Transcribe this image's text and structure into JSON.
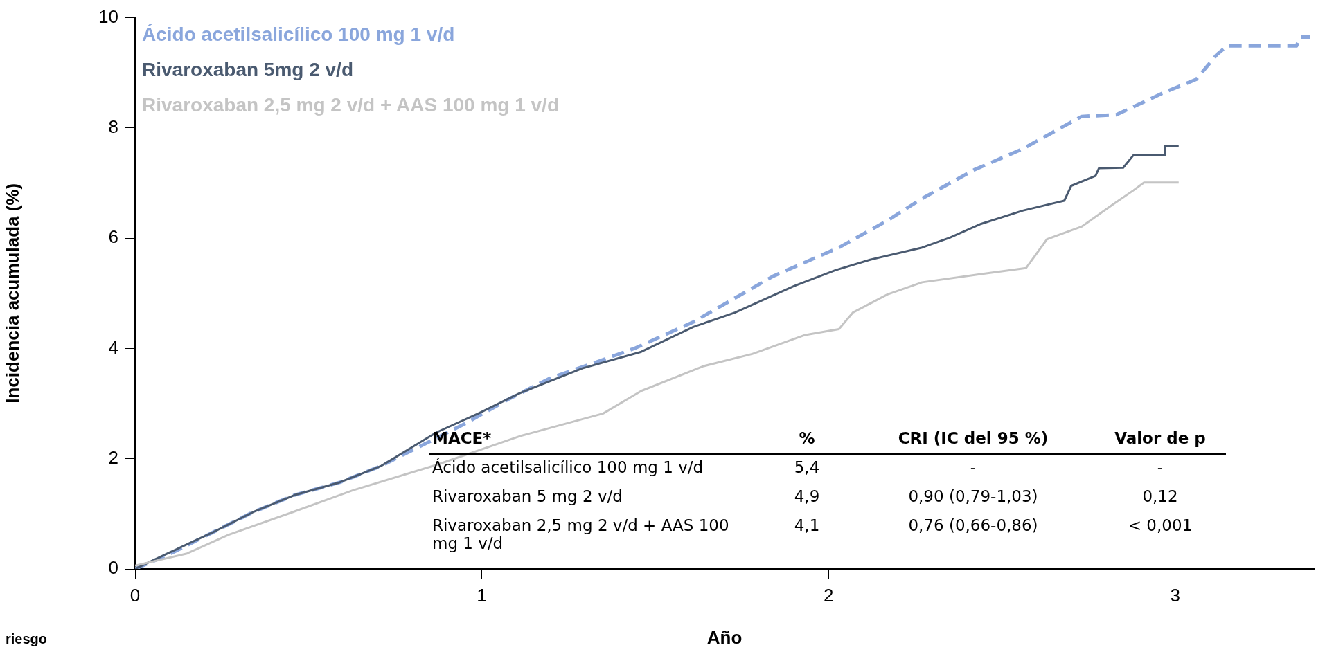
{
  "chart_data": {
    "type": "line",
    "xlabel": "Año",
    "ylabel": "Incidencia acumulada (%)",
    "xlim": [
      0,
      3.4
    ],
    "xticks": [
      0,
      1,
      2,
      3
    ],
    "ylim": [
      0,
      10
    ],
    "yticks": [
      0,
      2,
      4,
      6,
      8,
      10
    ],
    "grid": false,
    "legend": "top left",
    "series": [
      {
        "name": "Ácido acetilsalicílico 100 mg 1 v/d",
        "color": "#8aa6dc",
        "line_style": "dashed",
        "x": [
          0,
          0.1,
          0.22,
          0.34,
          0.46,
          0.59,
          0.71,
          0.83,
          0.95,
          1.08,
          1.2,
          1.32,
          1.44,
          1.61,
          1.84,
          2.03,
          2.17,
          2.27,
          2.42,
          2.56,
          2.73,
          2.83,
          2.97,
          3.06,
          3.12,
          3.15,
          3.35,
          3.36,
          3.39
        ],
        "values": [
          0,
          0.27,
          0.65,
          1.03,
          1.34,
          1.57,
          1.87,
          2.25,
          2.63,
          3.09,
          3.47,
          3.73,
          4.0,
          4.48,
          5.31,
          5.83,
          6.32,
          6.72,
          7.24,
          7.62,
          8.21,
          8.24,
          8.65,
          8.88,
          9.33,
          9.49,
          9.49,
          9.65,
          9.65
        ]
      },
      {
        "name": "Rivaroxaban 5mg 2 v/d",
        "color": "#4a5a70",
        "line_style": "solid",
        "x": [
          0,
          0.1,
          0.22,
          0.34,
          0.46,
          0.59,
          0.71,
          0.87,
          0.99,
          1.11,
          1.29,
          1.46,
          1.61,
          1.73,
          1.9,
          2.02,
          2.12,
          2.27,
          2.35,
          2.44,
          2.56,
          2.68,
          2.7,
          2.77,
          2.78,
          2.85,
          2.88,
          2.97,
          2.97,
          3.01
        ],
        "values": [
          0,
          0.3,
          0.65,
          1.03,
          1.34,
          1.57,
          1.87,
          2.48,
          2.82,
          3.19,
          3.64,
          3.94,
          4.39,
          4.65,
          5.13,
          5.42,
          5.61,
          5.83,
          6.01,
          6.26,
          6.5,
          6.68,
          6.95,
          7.13,
          7.27,
          7.28,
          7.51,
          7.51,
          7.67,
          7.67
        ]
      },
      {
        "name": "Rivaroxaban 2,5 mg 2 v/d + AAS 100 mg 1 v/d",
        "color": "#c4c4c4",
        "line_style": "solid",
        "x": [
          0,
          0.15,
          0.27,
          0.45,
          0.63,
          0.87,
          1.11,
          1.35,
          1.46,
          1.64,
          1.78,
          1.93,
          2.03,
          2.07,
          2.17,
          2.27,
          2.44,
          2.57,
          2.63,
          2.73,
          2.82,
          2.88,
          2.91,
          3.01
        ],
        "values": [
          0.06,
          0.28,
          0.62,
          1.02,
          1.43,
          1.89,
          2.41,
          2.82,
          3.23,
          3.68,
          3.9,
          4.24,
          4.35,
          4.65,
          4.98,
          5.2,
          5.35,
          5.46,
          5.98,
          6.21,
          6.61,
          6.87,
          7.01,
          7.01
        ]
      }
    ],
    "annotations": [
      "MACE*",
      "%",
      "CRI (IC del 95 %)",
      "Valor de p",
      "Ácido acetilsalicílico 100 mg 1 v/d",
      "5,4",
      "-",
      "-",
      "Rivaroxaban 5 mg 2 v/d",
      "4,9",
      "0,90 (0,79-1,03)",
      "0,12",
      "Rivaroxaban 2,5 mg 2 v/d + AAS 100 mg 1 v/d",
      "4,1",
      "0,76 (0,66-0,86)",
      "< 0,001",
      "riesgo"
    ]
  }
}
